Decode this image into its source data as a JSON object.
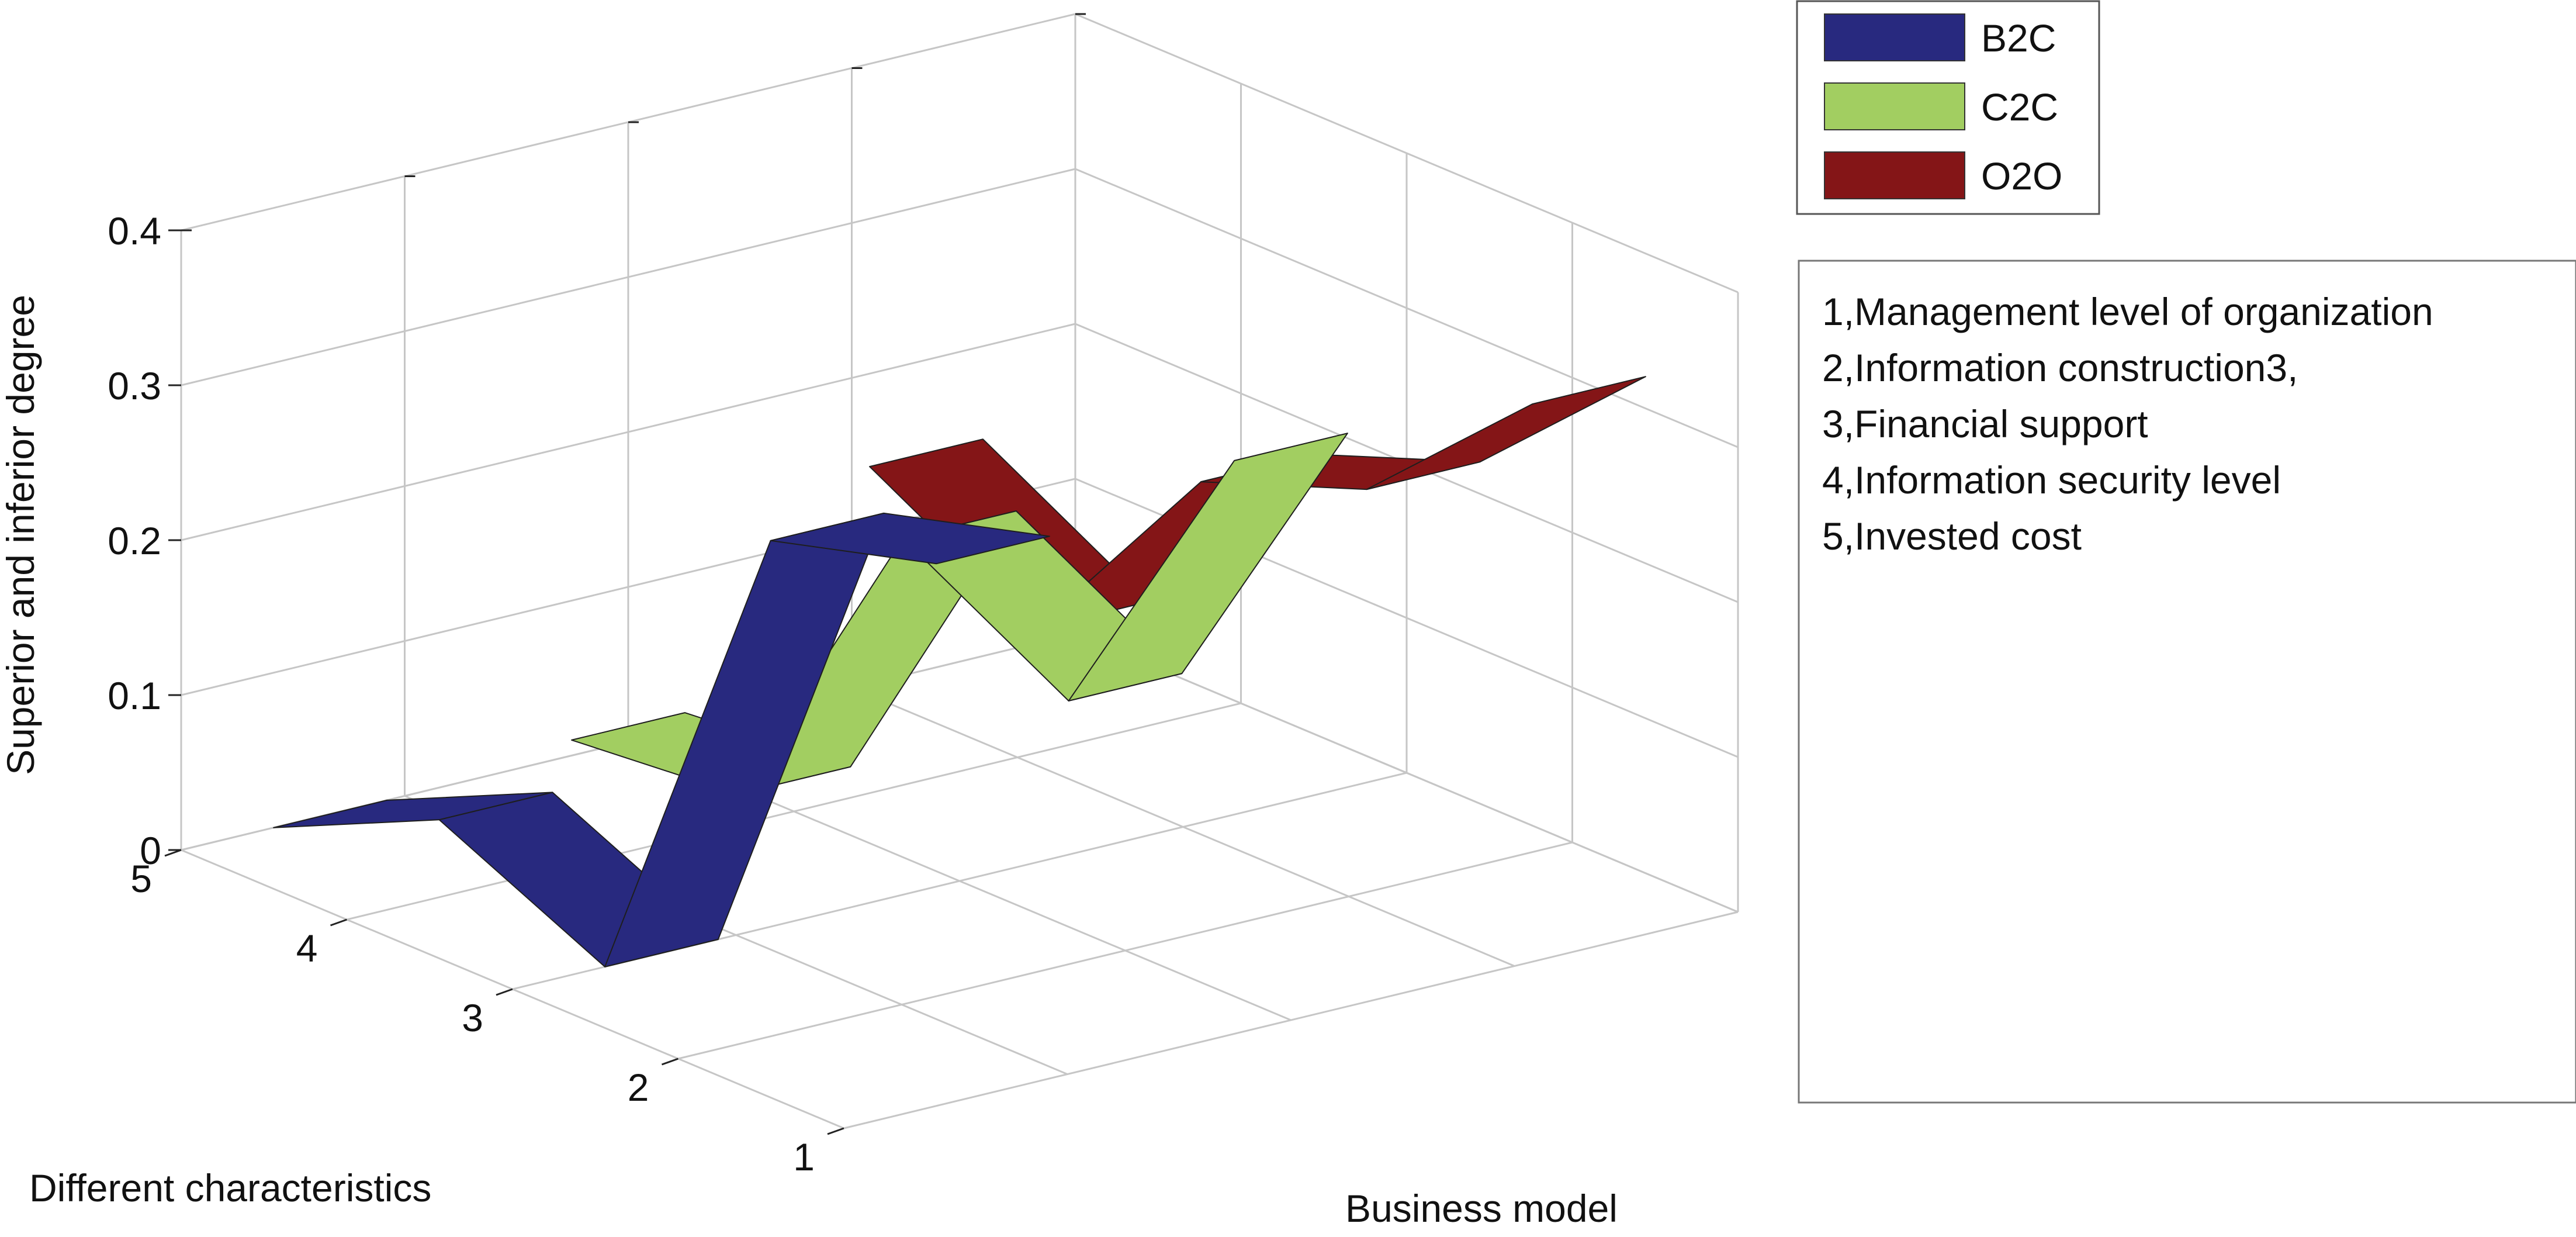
{
  "chart_data": {
    "type": "3d-ribbon",
    "zlabel": "Superior and inferior degree",
    "ylabel": "Different characteristics",
    "xlabel": "Business model",
    "zlim": [
      0,
      0.4
    ],
    "z_ticks": [
      "0",
      "0.1",
      "0.2",
      "0.3",
      "0.4"
    ],
    "y_ticks": [
      "1",
      "2",
      "3",
      "4",
      "5"
    ],
    "grid": true,
    "legend_position": "top-right",
    "series": [
      {
        "name": "B2C",
        "color": "#28297f",
        "values": [
          0.35,
          0.32,
          0.0,
          0.05,
          0.0
        ]
      },
      {
        "name": "C2C",
        "color": "#a2ce61",
        "values": [
          0.37,
          0.17,
          0.23,
          0.02,
          0.01
        ]
      },
      {
        "name": "O2O",
        "color": "#841517",
        "values": [
          0.36,
          0.26,
          0.22,
          0.08,
          0.14
        ]
      }
    ]
  },
  "legend": {
    "items": [
      {
        "label": "B2C",
        "color": "#28297f"
      },
      {
        "label": "C2C",
        "color": "#a2ce61"
      },
      {
        "label": "O2O",
        "color": "#841517"
      }
    ]
  },
  "notes": {
    "lines": [
      "1,Management level of organization",
      "2,Information construction3,",
      "3,Financial support",
      "4,Information security level",
      "5,Invested cost"
    ]
  }
}
